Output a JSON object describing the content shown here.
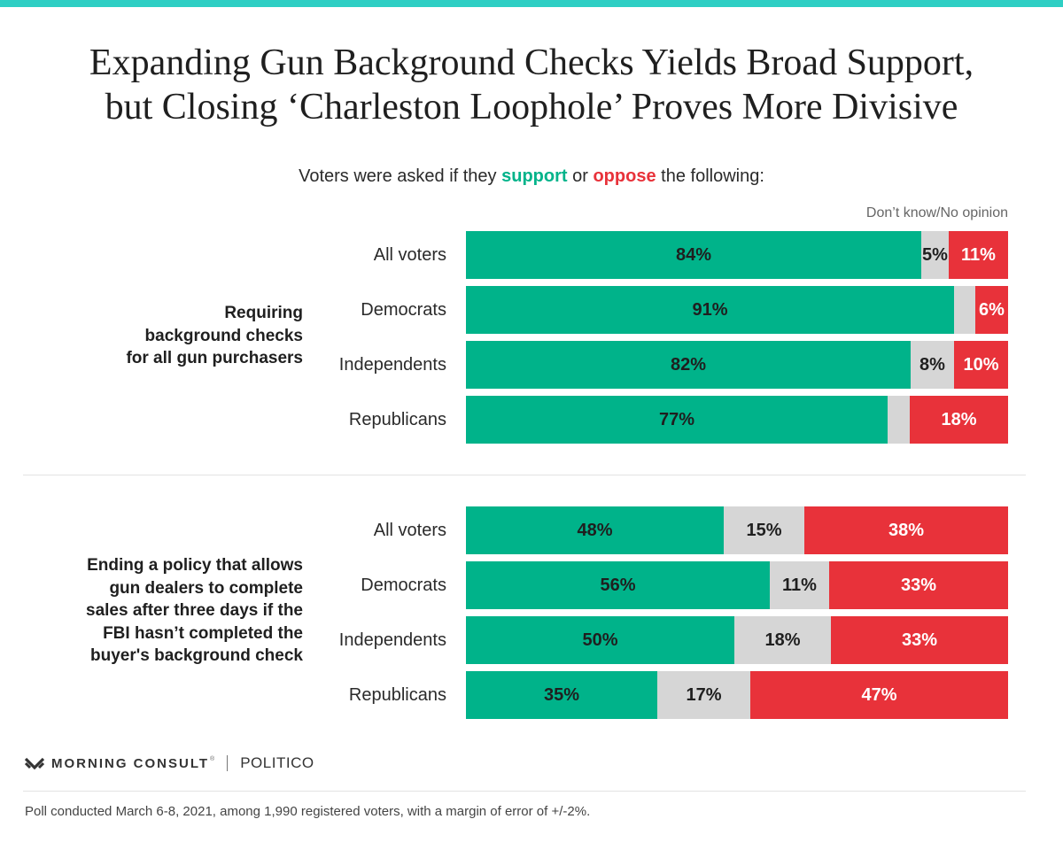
{
  "colors": {
    "support": "#00b38a",
    "neutral": "#d6d6d6",
    "oppose": "#e8323a",
    "accent_bar": "#2ecfc4"
  },
  "title_line1": "Expanding Gun Background Checks Yields Broad Support,",
  "title_line2": "but Closing ‘Charleston Loophole’ Proves More Divisive",
  "subtitle": {
    "prefix": "Voters were asked if they ",
    "support_word": "support",
    "middle": " or ",
    "oppose_word": "oppose",
    "suffix": " the following:"
  },
  "dk_label": "Don’t know/No opinion",
  "branding": {
    "logo_icon": "morning-consult-logo-icon",
    "morning_consult": "MORNING CONSULT",
    "registered_mark": "®",
    "politico": "POLITICO"
  },
  "footnote": "Poll conducted March 6-8, 2021, among 1,990 registered voters, with a margin of error of +/-2%.",
  "chart_data": {
    "type": "bar",
    "orientation": "horizontal",
    "stacked": "100%",
    "series_names": [
      "Support",
      "Don’t know/No opinion",
      "Oppose"
    ],
    "groups": [
      {
        "label_lines": [
          "Requiring",
          "background checks",
          "for all gun purchasers"
        ],
        "rows": [
          {
            "label": "All voters",
            "support": 84,
            "dk": 5,
            "oppose": 11,
            "support_label": "84%",
            "dk_label": "5%",
            "oppose_label": "11%"
          },
          {
            "label": "Democrats",
            "support": 91,
            "dk": 4,
            "oppose": 6,
            "support_label": "91%",
            "dk_label": "",
            "oppose_label": "6%"
          },
          {
            "label": "Independents",
            "support": 82,
            "dk": 8,
            "oppose": 10,
            "support_label": "82%",
            "dk_label": "8%",
            "oppose_label": "10%"
          },
          {
            "label": "Republicans",
            "support": 77,
            "dk": 4,
            "oppose": 18,
            "support_label": "77%",
            "dk_label": "",
            "oppose_label": "18%"
          }
        ]
      },
      {
        "label_lines": [
          "Ending a policy that allows",
          "gun dealers to complete",
          "sales after three days if the",
          "FBI hasn’t completed the",
          "buyer's background check"
        ],
        "rows": [
          {
            "label": "All voters",
            "support": 48,
            "dk": 15,
            "oppose": 38,
            "support_label": "48%",
            "dk_label": "15%",
            "oppose_label": "38%"
          },
          {
            "label": "Democrats",
            "support": 56,
            "dk": 11,
            "oppose": 33,
            "support_label": "56%",
            "dk_label": "11%",
            "oppose_label": "33%"
          },
          {
            "label": "Independents",
            "support": 50,
            "dk": 18,
            "oppose": 33,
            "support_label": "50%",
            "dk_label": "18%",
            "oppose_label": "33%"
          },
          {
            "label": "Republicans",
            "support": 35,
            "dk": 17,
            "oppose": 47,
            "support_label": "35%",
            "dk_label": "17%",
            "oppose_label": "47%"
          }
        ]
      }
    ]
  }
}
